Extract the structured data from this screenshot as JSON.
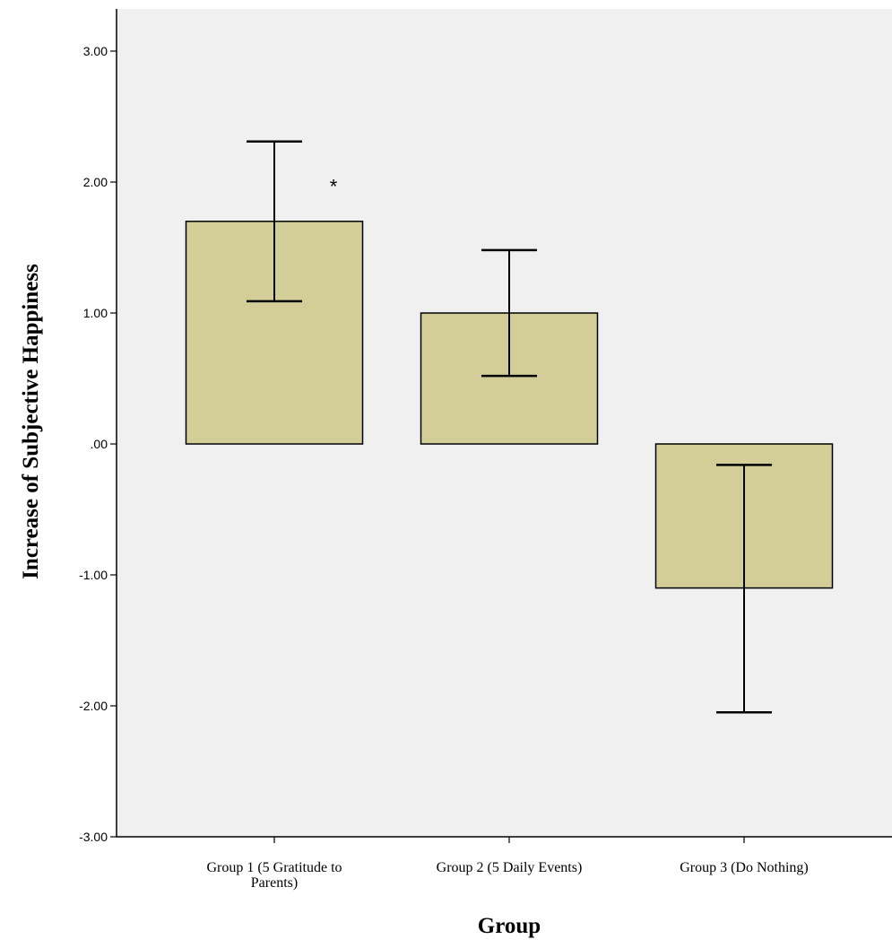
{
  "chart_data": {
    "type": "bar",
    "categories": [
      [
        "Group 1 (5 Gratitude to",
        "Parents)"
      ],
      [
        "Group 2 (5 Daily Events)"
      ],
      [
        "Group 3 (Do Nothing)"
      ]
    ],
    "values": [
      1.7,
      1.0,
      -1.1
    ],
    "error_bars": [
      {
        "low": 1.09,
        "high": 2.31
      },
      {
        "low": 0.52,
        "high": 1.48
      },
      {
        "low": -2.05,
        "high": -0.16
      }
    ],
    "annotations": [
      {
        "text": "*",
        "category_index": 0
      }
    ],
    "xlabel": "Group",
    "ylabel": "Increase of Subjective Happiness",
    "ylim": [
      -3,
      3.3
    ],
    "yticks": [
      3,
      2,
      1,
      0,
      -1,
      -2,
      -3
    ],
    "ytick_labels": [
      "3.00",
      "2.00",
      "1.00",
      ".00",
      "-1.00",
      "-2.00",
      "-3.00"
    ],
    "grid": false,
    "colors": {
      "plot_background": "#f0f0f0",
      "bar_fill": "#d3ce97",
      "bar_stroke": "#000000"
    }
  }
}
